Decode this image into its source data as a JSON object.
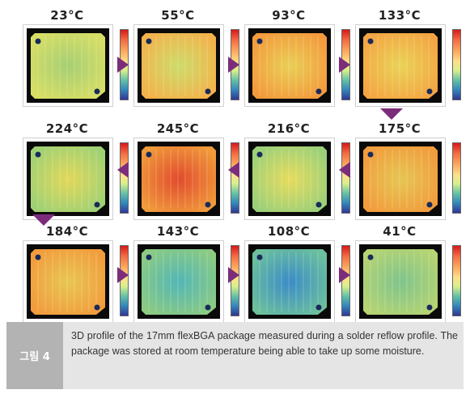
{
  "figure": {
    "panels": [
      {
        "temperature": "23°C",
        "colors": {
          "edge": "#d8de64",
          "center": "#a6cf74"
        },
        "arrow_after": "right"
      },
      {
        "temperature": "55°C",
        "colors": {
          "edge": "#f4b24a",
          "center": "#cddc6a"
        },
        "arrow_after": "right"
      },
      {
        "temperature": "93°C",
        "colors": {
          "edge": "#f49a3c",
          "center": "#e9cf55"
        },
        "arrow_after": "right"
      },
      {
        "temperature": "133°C",
        "colors": {
          "edge": "#f4a542",
          "center": "#ead356"
        },
        "arrow_after": "down"
      },
      {
        "temperature": "175°C",
        "colors": {
          "edge": "#f29c3c",
          "center": "#e6c652"
        },
        "arrow_after": "left"
      },
      {
        "temperature": "216°C",
        "colors": {
          "edge": "#9bd079",
          "center": "#e7dc5c"
        },
        "arrow_after": "left"
      },
      {
        "temperature": "245°C",
        "colors": {
          "edge": "#f09a3a",
          "center": "#e24a2c"
        },
        "arrow_after": "left"
      },
      {
        "temperature": "224°C",
        "colors": {
          "edge": "#9fd174",
          "center": "#e2d859"
        },
        "arrow_after": "down"
      },
      {
        "temperature": "184°C",
        "colors": {
          "edge": "#f29c3c",
          "center": "#e8c652"
        },
        "arrow_after": "right"
      },
      {
        "temperature": "143°C",
        "colors": {
          "edge": "#8ccb82",
          "center": "#52b6b6"
        },
        "arrow_after": "right"
      },
      {
        "temperature": "108°C",
        "colors": {
          "edge": "#6cc09c",
          "center": "#3a8cc8"
        },
        "arrow_after": "right"
      },
      {
        "temperature": "41°C",
        "colors": {
          "edge": "#b6d472",
          "center": "#7fc48c"
        },
        "arrow_after": "none"
      }
    ],
    "colors": {
      "arrow": "#7b2d7b",
      "substrate": "#0a0a0a",
      "ball": "#1a2a5a"
    }
  },
  "caption": {
    "label": "그림 4",
    "text": "3D profile of the 17mm flexBGA package measured during a solder reflow profile. The package was stored at room temperature being able to take up some moisture."
  }
}
